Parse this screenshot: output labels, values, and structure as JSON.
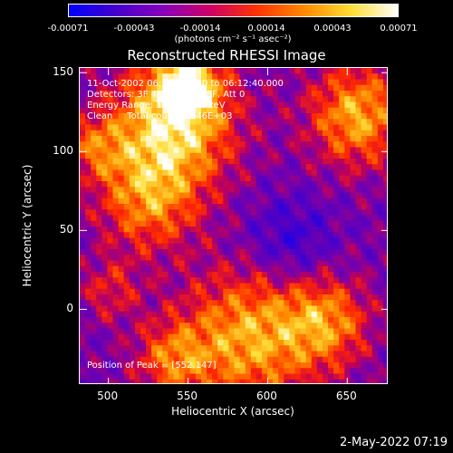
{
  "colorbar": {
    "ticks": [
      "-0.00071",
      "-0.00043",
      "-0.00014",
      "0.00014",
      "0.00043",
      "0.00071"
    ],
    "units": "(photons cm⁻² s⁻¹ asec⁻²)",
    "colors": [
      "#0000ff",
      "#4400cc",
      "#8800bb",
      "#cc0066",
      "#ff3300",
      "#ff8800",
      "#ffdd33",
      "#ffffff"
    ]
  },
  "chart_data": {
    "type": "heatmap",
    "title": "Reconstructed RHESSI Image",
    "xlabel": "Heliocentric X (arcsec)",
    "ylabel": "Heliocentric Y (arcsec)",
    "xlim": [
      482,
      676
    ],
    "ylim": [
      -48,
      153
    ],
    "xticks": [
      500,
      550,
      600,
      650
    ],
    "yticks": [
      0,
      50,
      100,
      150
    ],
    "zlim": [
      -0.00071,
      0.00071
    ],
    "peak": {
      "x": 552,
      "y": 147
    }
  },
  "annotations": {
    "time_range": "11-Oct-2002 06:12:28.000 to 06:12:40.000",
    "detectors": "Detectors: 3F 4F 5F 6F 7F 8F, Att 0",
    "energy": "Energy Range: 12.0 - 25.0 keV",
    "clean": "Clean     Total counts: 2.46E+03",
    "peak_position": "Position of Peak = [552,147]"
  },
  "footer": {
    "date": "2-May-2022 07:19"
  }
}
